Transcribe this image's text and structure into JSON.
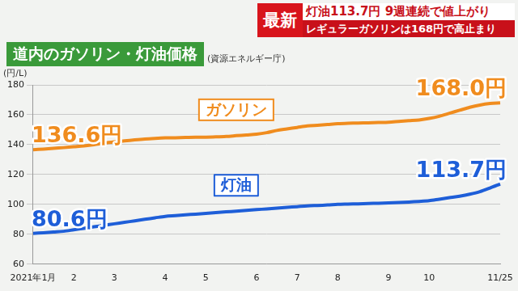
{
  "header": {
    "badge": "最新",
    "headline": "灯油113.7円 9週連続で値上がり",
    "subheadline": "レギュラーガソリンは168円で高止まり"
  },
  "chart_data": {
    "type": "line",
    "title": "道内のガソリン・灯油価格",
    "subtitle": "(資源エネルギー庁)",
    "ylabel": "(円/L)",
    "categories": [
      "2021年1月",
      null,
      null,
      null,
      "2",
      null,
      null,
      null,
      "3",
      null,
      null,
      null,
      null,
      "4",
      null,
      null,
      null,
      "5",
      null,
      null,
      null,
      null,
      "6",
      null,
      null,
      null,
      "7",
      null,
      null,
      null,
      "8",
      null,
      null,
      null,
      null,
      "9",
      null,
      null,
      null,
      "10",
      null,
      null,
      null,
      null,
      null,
      null,
      "11/25"
    ],
    "series": [
      {
        "name": "ガソリン",
        "color": "#f08c1e",
        "values": [
          136.6,
          137.0,
          137.5,
          138.0,
          138.6,
          139.2,
          140.0,
          141.0,
          141.8,
          142.5,
          143.2,
          143.8,
          144.2,
          144.5,
          144.6,
          144.8,
          145.0,
          145.0,
          145.2,
          145.5,
          146.0,
          146.5,
          147.0,
          148.0,
          149.5,
          150.5,
          151.5,
          152.5,
          153.0,
          153.5,
          154.0,
          154.3,
          154.5,
          154.6,
          154.8,
          155.0,
          155.5,
          156.0,
          156.5,
          157.5,
          159.0,
          161.0,
          163.0,
          165.0,
          166.5,
          167.5,
          168.0
        ],
        "value_labels": [
          "136.6円",
          null,
          null,
          null,
          null,
          null,
          null,
          null,
          null,
          null,
          null,
          null,
          null,
          null,
          null,
          null,
          null,
          null,
          null,
          null,
          null,
          null,
          null,
          null,
          null,
          null,
          null,
          null,
          null,
          null,
          null,
          null,
          null,
          null,
          null,
          null,
          null,
          null,
          null,
          null,
          null,
          null,
          null,
          null,
          null,
          null,
          "168.0円"
        ]
      },
      {
        "name": "灯油",
        "color": "#1e5ed8",
        "values": [
          80.6,
          81.0,
          81.5,
          82.0,
          83.0,
          84.0,
          85.0,
          86.0,
          87.0,
          88.0,
          89.0,
          90.0,
          91.0,
          92.0,
          92.5,
          93.0,
          93.5,
          94.0,
          94.5,
          95.0,
          95.5,
          96.0,
          96.5,
          97.0,
          97.5,
          98.0,
          98.5,
          99.0,
          99.3,
          99.6,
          100.0,
          100.2,
          100.4,
          100.6,
          100.8,
          101.0,
          101.3,
          101.6,
          102.0,
          102.5,
          103.5,
          104.5,
          105.5,
          106.8,
          108.5,
          111.0,
          113.7
        ],
        "value_labels": [
          "80.6円",
          null,
          null,
          null,
          null,
          null,
          null,
          null,
          null,
          null,
          null,
          null,
          null,
          null,
          null,
          null,
          null,
          null,
          null,
          null,
          null,
          null,
          null,
          null,
          null,
          null,
          null,
          null,
          null,
          null,
          null,
          null,
          null,
          null,
          null,
          null,
          null,
          null,
          null,
          null,
          null,
          null,
          null,
          null,
          null,
          null,
          "113.7円"
        ]
      }
    ],
    "ylim": [
      60,
      180
    ],
    "yticks": [
      60,
      80,
      100,
      120,
      140,
      160,
      180
    ],
    "grid": true,
    "data_labels": true
  }
}
